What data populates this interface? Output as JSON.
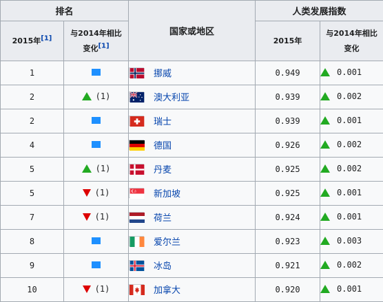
{
  "header": {
    "rank_group": "排名",
    "country": "国家或地区",
    "hdi_group": "人类发展指数",
    "rank_2015": "2015年",
    "rank_2015_ref": "[1]",
    "rank_change_line1": "与2014年相比",
    "rank_change_line2": "变化",
    "rank_change_ref": "[1]",
    "hdi_2015": "2015年",
    "hdi_change_line1": "与2014年相比",
    "hdi_change_line2": "变化"
  },
  "colors": {
    "up": "#22aa22",
    "down": "#dd0000",
    "same": "#1e90ff",
    "link": "#0645ad"
  },
  "rows": [
    {
      "rank": "1",
      "change_dir": "same",
      "change_num": "",
      "country": "挪威",
      "flag": "norway-flag",
      "hdi": "0.949",
      "hdi_change": "0.001"
    },
    {
      "rank": "2",
      "change_dir": "up",
      "change_num": "(1)",
      "country": "澳大利亚",
      "flag": "australia-flag",
      "hdi": "0.939",
      "hdi_change": "0.002"
    },
    {
      "rank": "2",
      "change_dir": "same",
      "change_num": "",
      "country": "瑞士",
      "flag": "switzerland-flag",
      "hdi": "0.939",
      "hdi_change": "0.001"
    },
    {
      "rank": "4",
      "change_dir": "same",
      "change_num": "",
      "country": "德国",
      "flag": "germany-flag",
      "hdi": "0.926",
      "hdi_change": "0.002"
    },
    {
      "rank": "5",
      "change_dir": "up",
      "change_num": "(1)",
      "country": "丹麦",
      "flag": "denmark-flag",
      "hdi": "0.925",
      "hdi_change": "0.002"
    },
    {
      "rank": "5",
      "change_dir": "down",
      "change_num": "(1)",
      "country": "新加坡",
      "flag": "singapore-flag",
      "hdi": "0.925",
      "hdi_change": "0.001"
    },
    {
      "rank": "7",
      "change_dir": "down",
      "change_num": "(1)",
      "country": "荷兰",
      "flag": "netherlands-flag",
      "hdi": "0.924",
      "hdi_change": "0.001"
    },
    {
      "rank": "8",
      "change_dir": "same",
      "change_num": "",
      "country": "爱尔兰",
      "flag": "ireland-flag",
      "hdi": "0.923",
      "hdi_change": "0.003"
    },
    {
      "rank": "9",
      "change_dir": "same",
      "change_num": "",
      "country": "冰岛",
      "flag": "iceland-flag",
      "hdi": "0.921",
      "hdi_change": "0.002"
    },
    {
      "rank": "10",
      "change_dir": "down",
      "change_num": "(1)",
      "country": "加拿大",
      "flag": "canada-flag",
      "hdi": "0.920",
      "hdi_change": "0.001"
    }
  ]
}
